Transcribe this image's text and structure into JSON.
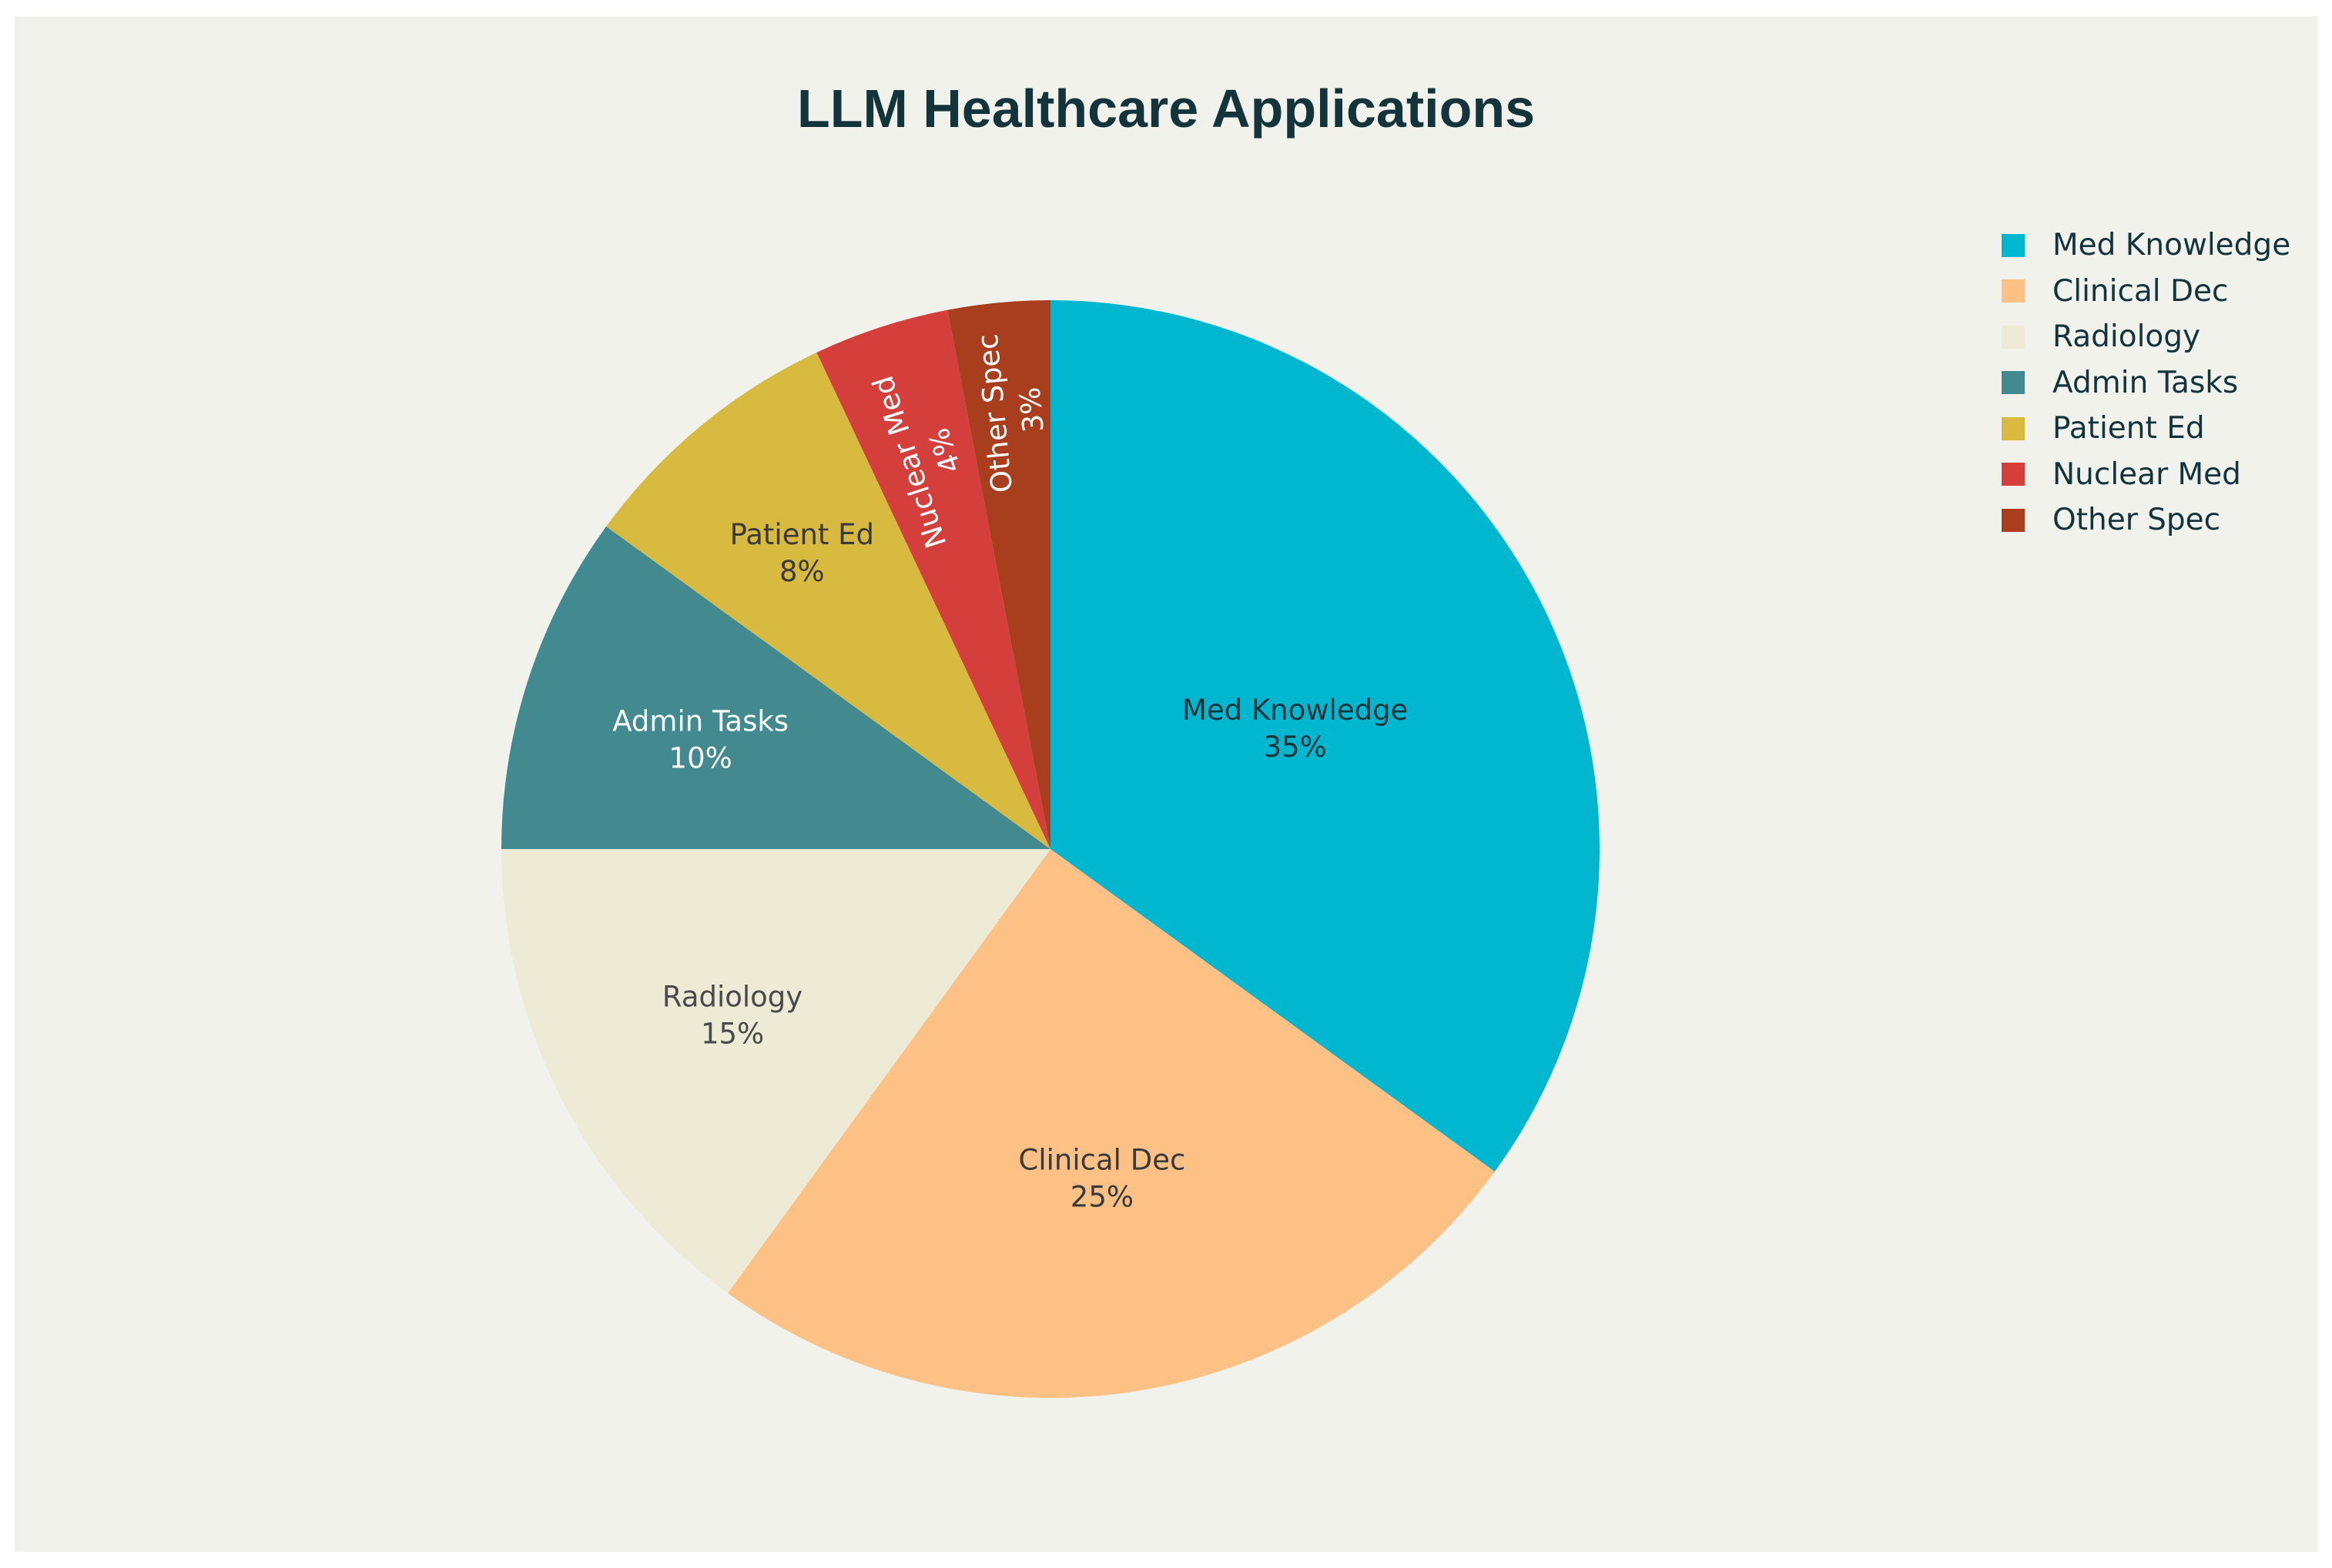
{
  "chart_data": {
    "type": "pie",
    "title": "LLM Healthcare Applications",
    "categories": [
      "Med Knowledge",
      "Clinical Dec",
      "Radiology",
      "Admin Tasks",
      "Patient Ed",
      "Nuclear Med",
      "Other Spec"
    ],
    "values": [
      35,
      25,
      15,
      10,
      8,
      4,
      3
    ],
    "value_labels": [
      "35%",
      "25%",
      "15%",
      "10%",
      "8%",
      "4%",
      "3%"
    ],
    "colors": [
      "#00b7cf",
      "#fdc186",
      "#edebd6",
      "#428990",
      "#d9ba41",
      "#d43f3b",
      "#a93e1e"
    ],
    "label_colors": [
      "#13343b",
      "#3a3a3a",
      "#4a4a4a",
      "#ffffff",
      "#3a3a3a",
      "#ffffff",
      "#ffffff"
    ],
    "legend_position": "top-right",
    "start": "12 o'clock, clockwise"
  }
}
